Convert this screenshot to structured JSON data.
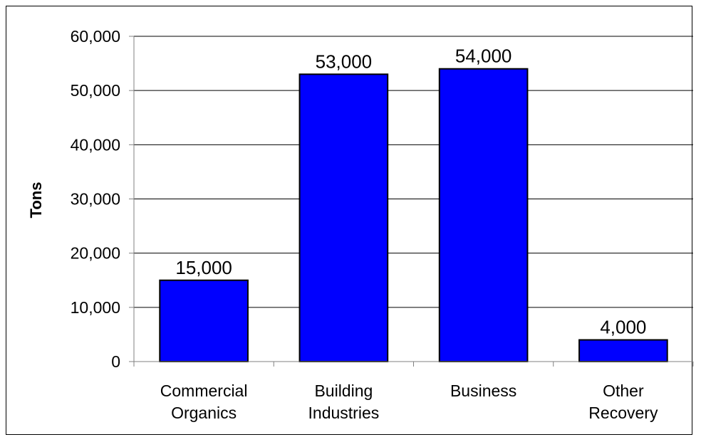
{
  "chart_data": {
    "type": "bar",
    "title": "",
    "xlabel": "",
    "ylabel": "Tons",
    "ylim": [
      0,
      60000
    ],
    "yticks": [
      0,
      10000,
      20000,
      30000,
      40000,
      50000,
      60000
    ],
    "ytick_labels": [
      "0",
      "10,000",
      "20,000",
      "30,000",
      "40,000",
      "50,000",
      "60,000"
    ],
    "categories": [
      [
        "Commercial",
        "Organics"
      ],
      [
        "Building",
        "Industries"
      ],
      [
        "Business"
      ],
      [
        "Other",
        "Recovery"
      ]
    ],
    "values": [
      15000,
      53000,
      54000,
      4000
    ],
    "data_labels": [
      "15,000",
      "53,000",
      "54,000",
      "4,000"
    ],
    "grid": true,
    "legend": "none",
    "colors": {
      "bar_fill": "#0000FF",
      "bar_stroke": "#000000",
      "grid": "#000000",
      "axis": "#808080"
    }
  }
}
